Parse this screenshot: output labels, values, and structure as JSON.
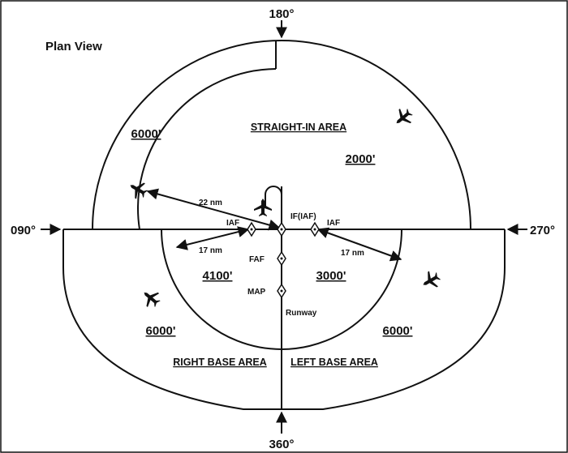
{
  "title": "Plan View",
  "headings": {
    "north": "180°",
    "west": "090°",
    "east": "270°",
    "south": "360°"
  },
  "areas": {
    "straight_in": "STRAIGHT-IN AREA",
    "right_base": "RIGHT BASE AREA",
    "left_base": "LEFT BASE AREA"
  },
  "altitudes": {
    "outer_nw": "6000'",
    "straight_in": "2000'",
    "inner_left": "4100'",
    "inner_right": "3000'",
    "outer_sw": "6000'",
    "outer_se": "6000'"
  },
  "fixes": {
    "if": "IF(IAF)",
    "iaf_left": "IAF",
    "iaf_right": "IAF",
    "faf": "FAF",
    "map": "MAP"
  },
  "distances": {
    "radius_outer": "22 nm",
    "radius_left": "17 nm",
    "radius_right": "17 nm"
  },
  "runway_label": "Runway",
  "colors": {
    "ink": "#111111",
    "background": "#ffffff"
  },
  "icons": [
    "airplane-icon",
    "airplane-icon",
    "airplane-icon",
    "airplane-icon",
    "airplane-icon"
  ]
}
